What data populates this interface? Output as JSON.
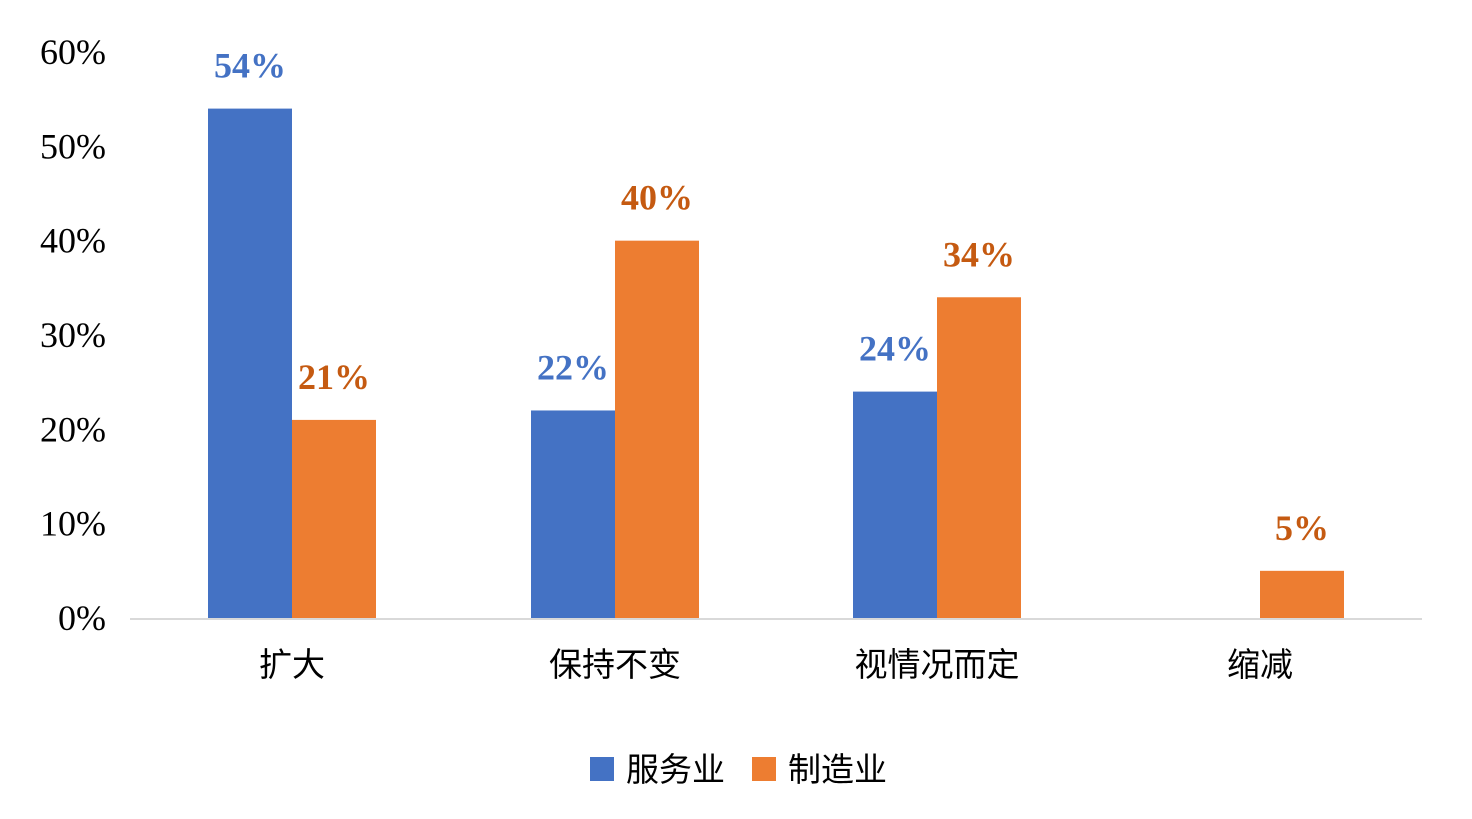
{
  "chart_data": {
    "type": "bar",
    "categories": [
      "扩大",
      "保持不变",
      "视情况而定",
      "缩减"
    ],
    "series": [
      {
        "name": "服务业",
        "color": "#4472C4",
        "values": [
          54,
          22,
          24,
          null
        ],
        "labels": [
          "54%",
          "22%",
          "24%",
          ""
        ]
      },
      {
        "name": "制造业",
        "color": "#ED7D31",
        "values": [
          21,
          40,
          34,
          5
        ],
        "labels": [
          "21%",
          "40%",
          "34%",
          "5%"
        ]
      }
    ],
    "label_colors": [
      "#4472C4",
      "#C55A11"
    ],
    "yticks": [
      "0%",
      "10%",
      "20%",
      "30%",
      "40%",
      "50%",
      "60%"
    ],
    "ylim": [
      0,
      60
    ],
    "grid": false,
    "legend_position": "bottom",
    "title": "",
    "xlabel": "",
    "ylabel": ""
  }
}
